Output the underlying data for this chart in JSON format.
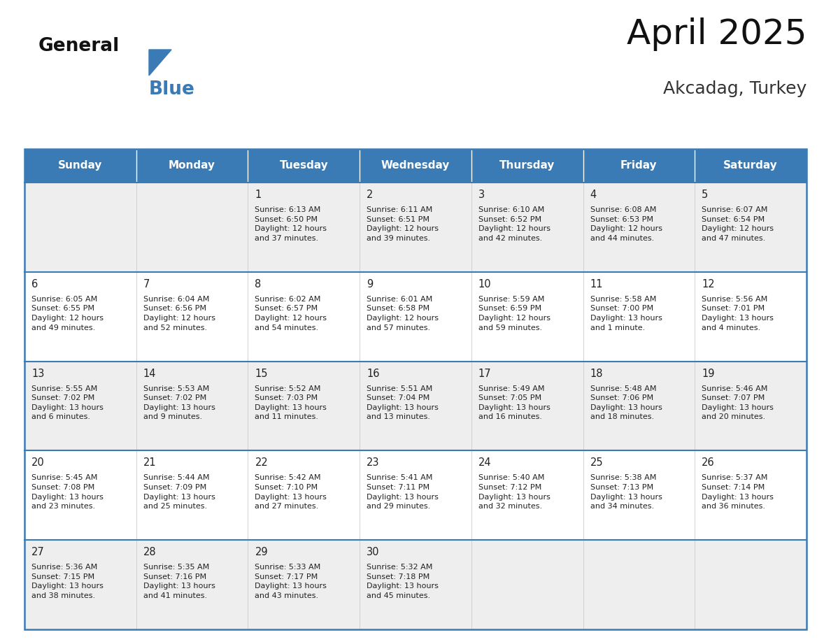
{
  "title": "April 2025",
  "subtitle": "Akcadag, Turkey",
  "header_bg_color": "#3a7ab5",
  "header_text_color": "#ffffff",
  "row_bg_colors": [
    "#eeeeee",
    "#ffffff"
  ],
  "border_color": "#3a7ab5",
  "divider_color": "#cccccc",
  "text_color": "#222222",
  "days_of_week": [
    "Sunday",
    "Monday",
    "Tuesday",
    "Wednesday",
    "Thursday",
    "Friday",
    "Saturday"
  ],
  "weeks": [
    [
      {
        "day": null,
        "info": null
      },
      {
        "day": null,
        "info": null
      },
      {
        "day": 1,
        "info": "Sunrise: 6:13 AM\nSunset: 6:50 PM\nDaylight: 12 hours\nand 37 minutes."
      },
      {
        "day": 2,
        "info": "Sunrise: 6:11 AM\nSunset: 6:51 PM\nDaylight: 12 hours\nand 39 minutes."
      },
      {
        "day": 3,
        "info": "Sunrise: 6:10 AM\nSunset: 6:52 PM\nDaylight: 12 hours\nand 42 minutes."
      },
      {
        "day": 4,
        "info": "Sunrise: 6:08 AM\nSunset: 6:53 PM\nDaylight: 12 hours\nand 44 minutes."
      },
      {
        "day": 5,
        "info": "Sunrise: 6:07 AM\nSunset: 6:54 PM\nDaylight: 12 hours\nand 47 minutes."
      }
    ],
    [
      {
        "day": 6,
        "info": "Sunrise: 6:05 AM\nSunset: 6:55 PM\nDaylight: 12 hours\nand 49 minutes."
      },
      {
        "day": 7,
        "info": "Sunrise: 6:04 AM\nSunset: 6:56 PM\nDaylight: 12 hours\nand 52 minutes."
      },
      {
        "day": 8,
        "info": "Sunrise: 6:02 AM\nSunset: 6:57 PM\nDaylight: 12 hours\nand 54 minutes."
      },
      {
        "day": 9,
        "info": "Sunrise: 6:01 AM\nSunset: 6:58 PM\nDaylight: 12 hours\nand 57 minutes."
      },
      {
        "day": 10,
        "info": "Sunrise: 5:59 AM\nSunset: 6:59 PM\nDaylight: 12 hours\nand 59 minutes."
      },
      {
        "day": 11,
        "info": "Sunrise: 5:58 AM\nSunset: 7:00 PM\nDaylight: 13 hours\nand 1 minute."
      },
      {
        "day": 12,
        "info": "Sunrise: 5:56 AM\nSunset: 7:01 PM\nDaylight: 13 hours\nand 4 minutes."
      }
    ],
    [
      {
        "day": 13,
        "info": "Sunrise: 5:55 AM\nSunset: 7:02 PM\nDaylight: 13 hours\nand 6 minutes."
      },
      {
        "day": 14,
        "info": "Sunrise: 5:53 AM\nSunset: 7:02 PM\nDaylight: 13 hours\nand 9 minutes."
      },
      {
        "day": 15,
        "info": "Sunrise: 5:52 AM\nSunset: 7:03 PM\nDaylight: 13 hours\nand 11 minutes."
      },
      {
        "day": 16,
        "info": "Sunrise: 5:51 AM\nSunset: 7:04 PM\nDaylight: 13 hours\nand 13 minutes."
      },
      {
        "day": 17,
        "info": "Sunrise: 5:49 AM\nSunset: 7:05 PM\nDaylight: 13 hours\nand 16 minutes."
      },
      {
        "day": 18,
        "info": "Sunrise: 5:48 AM\nSunset: 7:06 PM\nDaylight: 13 hours\nand 18 minutes."
      },
      {
        "day": 19,
        "info": "Sunrise: 5:46 AM\nSunset: 7:07 PM\nDaylight: 13 hours\nand 20 minutes."
      }
    ],
    [
      {
        "day": 20,
        "info": "Sunrise: 5:45 AM\nSunset: 7:08 PM\nDaylight: 13 hours\nand 23 minutes."
      },
      {
        "day": 21,
        "info": "Sunrise: 5:44 AM\nSunset: 7:09 PM\nDaylight: 13 hours\nand 25 minutes."
      },
      {
        "day": 22,
        "info": "Sunrise: 5:42 AM\nSunset: 7:10 PM\nDaylight: 13 hours\nand 27 minutes."
      },
      {
        "day": 23,
        "info": "Sunrise: 5:41 AM\nSunset: 7:11 PM\nDaylight: 13 hours\nand 29 minutes."
      },
      {
        "day": 24,
        "info": "Sunrise: 5:40 AM\nSunset: 7:12 PM\nDaylight: 13 hours\nand 32 minutes."
      },
      {
        "day": 25,
        "info": "Sunrise: 5:38 AM\nSunset: 7:13 PM\nDaylight: 13 hours\nand 34 minutes."
      },
      {
        "day": 26,
        "info": "Sunrise: 5:37 AM\nSunset: 7:14 PM\nDaylight: 13 hours\nand 36 minutes."
      }
    ],
    [
      {
        "day": 27,
        "info": "Sunrise: 5:36 AM\nSunset: 7:15 PM\nDaylight: 13 hours\nand 38 minutes."
      },
      {
        "day": 28,
        "info": "Sunrise: 5:35 AM\nSunset: 7:16 PM\nDaylight: 13 hours\nand 41 minutes."
      },
      {
        "day": 29,
        "info": "Sunrise: 5:33 AM\nSunset: 7:17 PM\nDaylight: 13 hours\nand 43 minutes."
      },
      {
        "day": 30,
        "info": "Sunrise: 5:32 AM\nSunset: 7:18 PM\nDaylight: 13 hours\nand 45 minutes."
      },
      {
        "day": null,
        "info": null
      },
      {
        "day": null,
        "info": null
      },
      {
        "day": null,
        "info": null
      }
    ]
  ],
  "logo_general_color": "#111111",
  "logo_blue_color": "#3a7ab5",
  "logo_triangle_color": "#3a7ab5",
  "title_color": "#111111",
  "subtitle_color": "#333333"
}
